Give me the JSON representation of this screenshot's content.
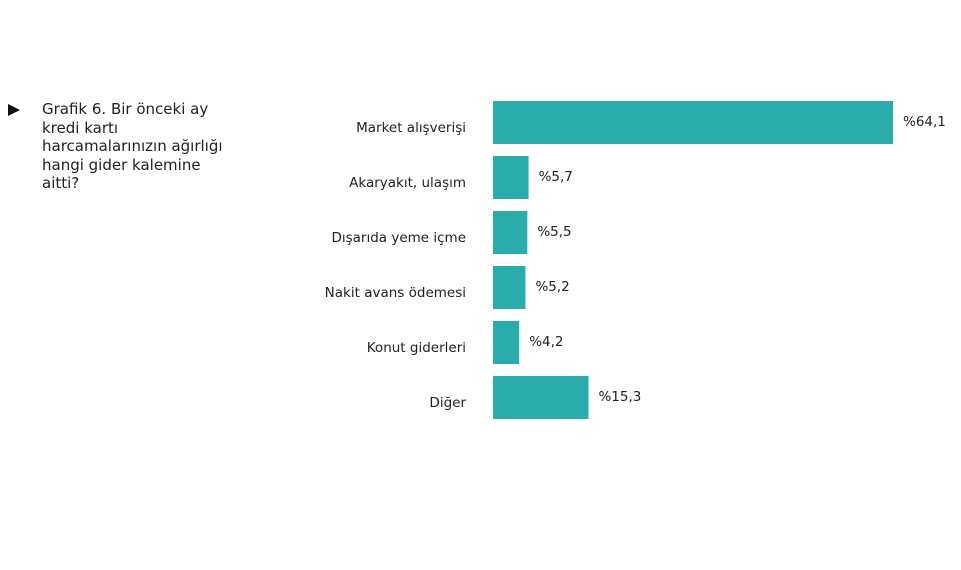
{
  "caption": {
    "text": "Grafik 6. Bir önceki ay kredi kartı harcamalarınızın ağırlığı hangi gider kalemine aitti?"
  },
  "chart_data": {
    "type": "bar",
    "orientation": "horizontal",
    "title": "Grafik 6. Bir önceki ay kredi kartı harcamalarınızın ağırlığı hangi gider kalemine aitti?",
    "categories": [
      "Market alışverişi",
      "Akaryakıt, ulaşım",
      "Dışarıda yeme içme",
      "Nakit avans ödemesi",
      "Konut giderleri",
      "Diğer"
    ],
    "values": [
      64.1,
      5.7,
      5.5,
      5.2,
      4.2,
      15.3
    ],
    "value_labels": [
      "%64,1",
      "%5,7",
      "%5,5",
      "%5,2",
      "%4,2",
      "%15,3"
    ],
    "xlim": [
      0,
      64.1
    ],
    "bar_color": "#2aacad",
    "grid": false,
    "legend": "none"
  }
}
